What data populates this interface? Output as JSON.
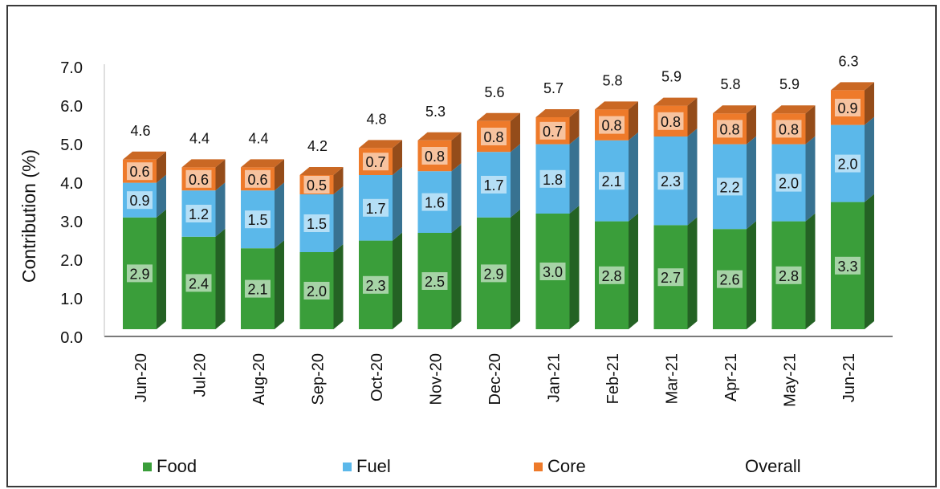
{
  "chart_data": {
    "type": "bar",
    "stacked": true,
    "style": "3d",
    "title": "",
    "xlabel": "",
    "ylabel": "Contribution (%)",
    "ylim": [
      0,
      7
    ],
    "yticks": [
      "0.0",
      "1.0",
      "2.0",
      "3.0",
      "4.0",
      "5.0",
      "6.0",
      "7.0"
    ],
    "grid": false,
    "legend_position": "bottom",
    "categories": [
      "Jun-20",
      "Jul-20",
      "Aug-20",
      "Sep-20",
      "Oct-20",
      "Nov-20",
      "Dec-20",
      "Jan-21",
      "Feb-21",
      "Mar-21",
      "Apr-21",
      "May-21",
      "Jun-21"
    ],
    "series": [
      {
        "name": "Food",
        "color": "#3a9e3a",
        "values": [
          2.9,
          2.4,
          2.1,
          2.0,
          2.3,
          2.5,
          2.9,
          3.0,
          2.8,
          2.7,
          2.6,
          2.8,
          3.3
        ]
      },
      {
        "name": "Fuel",
        "color": "#5bb8ea",
        "values": [
          0.9,
          1.2,
          1.5,
          1.5,
          1.7,
          1.6,
          1.7,
          1.8,
          2.1,
          2.3,
          2.2,
          2.0,
          2.0
        ]
      },
      {
        "name": "Core",
        "color": "#ee7a2a",
        "values": [
          0.6,
          0.6,
          0.6,
          0.5,
          0.7,
          0.8,
          0.8,
          0.7,
          0.8,
          0.8,
          0.8,
          0.8,
          0.9
        ]
      }
    ],
    "overall": {
      "name": "Overall",
      "values": [
        "4.6",
        "4.4",
        "4.4",
        "4.2",
        "4.8",
        "5.3",
        "5.6",
        "5.7",
        "5.8",
        "5.9",
        "5.8",
        "5.9",
        "6.3"
      ]
    }
  },
  "legend": {
    "food": "Food",
    "fuel": "Fuel",
    "core": "Core",
    "overall": "Overall"
  }
}
